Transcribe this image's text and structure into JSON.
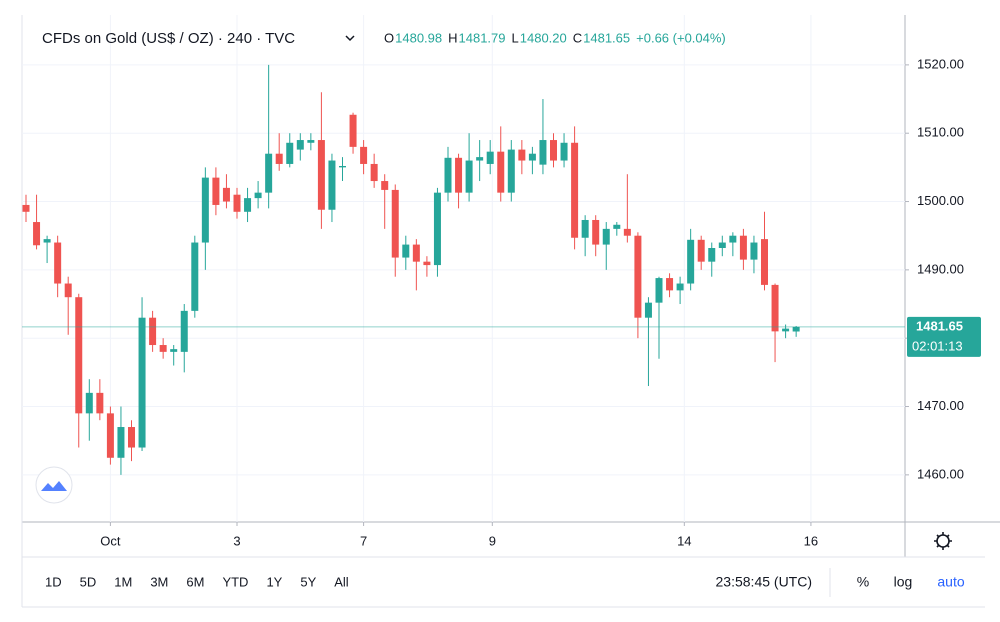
{
  "chart_data": {
    "type": "candlestick",
    "title": "CFDs on Gold (US$ / OZ) · 240 · TVC",
    "ohlc_labels": [
      "O",
      "H",
      "L",
      "C"
    ],
    "ohlc_values": [
      "1480.98",
      "1481.79",
      "1480.20",
      "1481.65"
    ],
    "change": "+0.66 (+0.04%)",
    "countdown": "02:01:13",
    "up_color": "#26a69a",
    "down_color": "#ef5350",
    "open": [
      1499.5,
      1497,
      1494,
      1494,
      1488,
      1486,
      1469,
      1472,
      1469,
      1462.5,
      1467,
      1464,
      1483,
      1479,
      1478,
      1478,
      1484,
      1494,
      1503.5,
      1502,
      1501,
      1498.5,
      1500.5,
      1501.3,
      1507,
      1505.5,
      1507.6,
      1508.6,
      1509,
      1498.8,
      1505,
      1512.7,
      1508,
      1505.5,
      1503,
      1501.7,
      1491.8,
      1493.7,
      1491.2,
      1490.7,
      1501.3,
      1506.4,
      1501.3,
      1506,
      1505.5,
      1507.3,
      1501.3,
      1507.6,
      1506,
      1505.4,
      1509,
      1506,
      1508.6,
      1494.7,
      1497.3,
      1493.7,
      1496,
      1496,
      1495,
      1483,
      1485.2,
      1488.8,
      1487,
      1488,
      1494.4,
      1491.2,
      1493.2,
      1494,
      1495,
      1491.5,
      1494.5,
      1487.8,
      1481,
      1480.98
    ],
    "high": [
      1501,
      1501,
      1495,
      1495,
      1489,
      1486.5,
      1474,
      1474,
      1470,
      1470,
      1468,
      1486,
      1484,
      1480,
      1479,
      1485,
      1495,
      1505,
      1505,
      1504,
      1502,
      1502,
      1503,
      1520,
      1510,
      1510,
      1510,
      1510,
      1516,
      1507,
      1506.5,
      1513,
      1509,
      1507,
      1504,
      1502.5,
      1495,
      1494.5,
      1492,
      1502,
      1508,
      1507,
      1510,
      1509,
      1509,
      1511,
      1509,
      1509,
      1508,
      1515,
      1510,
      1510,
      1511,
      1498,
      1498,
      1497,
      1497,
      1504,
      1495.5,
      1486,
      1489,
      1489.5,
      1489,
      1496,
      1495,
      1494,
      1495,
      1495.5,
      1496,
      1495,
      1498.5,
      1488,
      1482,
      1481.79
    ],
    "low": [
      1497,
      1493,
      1491,
      1486,
      1480.5,
      1464,
      1465,
      1468,
      1461.5,
      1460,
      1462,
      1463.5,
      1478,
      1477,
      1476,
      1475,
      1483,
      1490,
      1498,
      1499,
      1497.5,
      1497,
      1499,
      1499,
      1504.5,
      1505,
      1506,
      1507.5,
      1496,
      1497,
      1503,
      1507,
      1504,
      1502,
      1496,
      1489,
      1490,
      1487,
      1489,
      1489,
      1500,
      1499,
      1500,
      1503,
      1504,
      1500,
      1500,
      1504,
      1504,
      1504,
      1505,
      1505,
      1493,
      1492,
      1492,
      1490,
      1495,
      1494,
      1480,
      1473,
      1477,
      1486,
      1485,
      1487,
      1490,
      1489,
      1492,
      1492,
      1490,
      1489.5,
      1487,
      1476.5,
      1480,
      1480.2
    ],
    "close": [
      1498.5,
      1493.6,
      1494.5,
      1488,
      1486,
      1469,
      1472,
      1469,
      1462.5,
      1467,
      1464,
      1483,
      1479,
      1478,
      1478.4,
      1484,
      1494,
      1503.5,
      1499.5,
      1500,
      1498.5,
      1500.5,
      1501.3,
      1507,
      1505.5,
      1508.6,
      1509,
      1509,
      1498.8,
      1506,
      1505.2,
      1508,
      1505.5,
      1503,
      1501.7,
      1491.8,
      1493.7,
      1491.2,
      1490.7,
      1501.3,
      1506.4,
      1501.3,
      1506,
      1506.5,
      1507.3,
      1501.3,
      1507.6,
      1506,
      1507,
      1509,
      1506,
      1508.6,
      1494.7,
      1497.3,
      1493.7,
      1496,
      1496.6,
      1495,
      1483,
      1485.2,
      1488.8,
      1487,
      1488,
      1494.4,
      1491.2,
      1493.2,
      1494,
      1495,
      1491.5,
      1494,
      1487.8,
      1481,
      1481.4,
      1481.65
    ],
    "xticks": [
      {
        "value": 8,
        "label": "Oct"
      },
      {
        "value": 20,
        "label": "3"
      },
      {
        "value": 32,
        "label": "7"
      },
      {
        "value": 44.2,
        "label": "9"
      },
      {
        "value": 62.4,
        "label": "14"
      },
      {
        "value": 74.4,
        "label": "16"
      }
    ],
    "ylim": [
      1453.1,
      1527.3
    ],
    "yticks": [
      {
        "value": 1460,
        "label": "1460.00"
      },
      {
        "value": 1470,
        "label": "1470.00"
      },
      {
        "value": 1480,
        "label": "1480.00"
      },
      {
        "value": 1490,
        "label": "1490.00"
      },
      {
        "value": 1500,
        "label": "1500.00"
      },
      {
        "value": 1510,
        "label": "1510.00"
      },
      {
        "value": 1520,
        "label": "1520.00"
      }
    ],
    "ranges": [
      "1D",
      "5D",
      "1M",
      "3M",
      "6M",
      "YTD",
      "1Y",
      "5Y",
      "All"
    ],
    "clock": "23:58:45 (UTC)",
    "options": [
      "%",
      "log",
      "auto"
    ]
  }
}
